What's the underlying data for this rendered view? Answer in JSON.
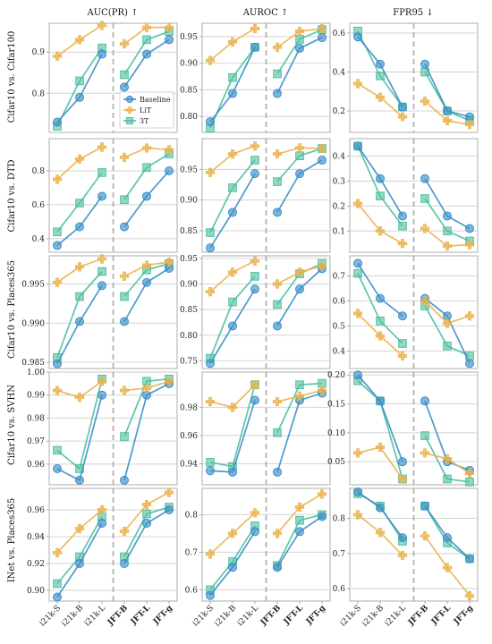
{
  "column_titles": [
    "AUC(PR) ↑",
    "AUROC ↑",
    "FPR95 ↓"
  ],
  "row_labels": [
    "Cifar10 vs. Cifar100",
    "Cifar10 vs. DTD",
    "Cifar10 vs. Places365",
    "Cifar10 vs. SVHN",
    "INet vs. Places365"
  ],
  "x_categories": [
    "i21k-S",
    "i21k-B",
    "i21k-L",
    "JFT-B",
    "JFT-L",
    "JFT-g"
  ],
  "x_bold": [
    false,
    false,
    false,
    true,
    true,
    true
  ],
  "legend": [
    "Baseline",
    "LiT",
    "3T"
  ],
  "colors": {
    "Baseline": "#3a8fc8",
    "LiT": "#ebb24c",
    "3T": "#4dbfa0"
  },
  "chart_data": {
    "type": "line",
    "layout": "grid 5 rows x 3 cols",
    "grid": true,
    "legend_position": "first panel, lower right",
    "separator": "dashed vertical line between i21k-L and JFT-B",
    "panels": [
      {
        "row": 0,
        "col": 0,
        "yticks": [
          "0.8",
          "0.9"
        ],
        "ylim": [
          0.705,
          0.97
        ],
        "series": [
          {
            "name": "Baseline",
            "values": [
              0.73,
              0.79,
              0.895,
              0.815,
              0.895,
              0.93
            ]
          },
          {
            "name": "LiT",
            "values": [
              0.89,
              0.93,
              0.965,
              0.92,
              0.96,
              0.96
            ]
          },
          {
            "name": "3T",
            "values": [
              0.72,
              0.83,
              0.91,
              0.845,
              0.93,
              0.95
            ]
          }
        ]
      },
      {
        "row": 0,
        "col": 1,
        "yticks": [
          "0.80",
          "0.85",
          "0.90",
          "0.95"
        ],
        "ylim": [
          0.77,
          0.975
        ],
        "series": [
          {
            "name": "Baseline",
            "values": [
              0.79,
              0.843,
              0.93,
              0.843,
              0.928,
              0.948
            ]
          },
          {
            "name": "LiT",
            "values": [
              0.905,
              0.94,
              0.965,
              0.93,
              0.96,
              0.965
            ]
          },
          {
            "name": "3T",
            "values": [
              0.778,
              0.873,
              0.93,
              0.88,
              0.945,
              0.963
            ]
          }
        ]
      },
      {
        "row": 0,
        "col": 2,
        "yticks": [
          "0.2",
          "0.4",
          "0.6"
        ],
        "ylim": [
          0.09,
          0.65
        ],
        "series": [
          {
            "name": "Baseline",
            "values": [
              0.58,
              0.44,
              0.22,
              0.44,
              0.2,
              0.17
            ]
          },
          {
            "name": "LiT",
            "values": [
              0.34,
              0.27,
              0.17,
              0.25,
              0.15,
              0.13
            ]
          },
          {
            "name": "3T",
            "values": [
              0.61,
              0.38,
              0.22,
              0.4,
              0.2,
              0.15
            ]
          }
        ]
      },
      {
        "row": 1,
        "col": 0,
        "yticks": [
          "0.4",
          "0.6",
          "0.8"
        ],
        "ylim": [
          0.32,
          0.99
        ],
        "series": [
          {
            "name": "Baseline",
            "values": [
              0.36,
              0.47,
              0.65,
              0.47,
              0.65,
              0.8
            ]
          },
          {
            "name": "LiT",
            "values": [
              0.75,
              0.87,
              0.94,
              0.88,
              0.935,
              0.925
            ]
          },
          {
            "name": "3T",
            "values": [
              0.44,
              0.61,
              0.79,
              0.63,
              0.82,
              0.9
            ]
          }
        ]
      },
      {
        "row": 1,
        "col": 1,
        "yticks": [
          "0.85",
          "0.90",
          "0.95"
        ],
        "ylim": [
          0.815,
          1.0
        ],
        "series": [
          {
            "name": "Baseline",
            "values": [
              0.822,
              0.88,
              0.943,
              0.88,
              0.943,
              0.965
            ]
          },
          {
            "name": "LiT",
            "values": [
              0.945,
              0.975,
              0.988,
              0.975,
              0.985,
              0.984
            ]
          },
          {
            "name": "3T",
            "values": [
              0.847,
              0.92,
              0.965,
              0.93,
              0.972,
              0.984
            ]
          }
        ]
      },
      {
        "row": 1,
        "col": 2,
        "yticks": [
          "0.1",
          "0.2",
          "0.3",
          "0.4"
        ],
        "ylim": [
          0.015,
          0.47
        ],
        "series": [
          {
            "name": "Baseline",
            "values": [
              0.44,
              0.31,
              0.16,
              0.31,
              0.16,
              0.11
            ]
          },
          {
            "name": "LiT",
            "values": [
              0.21,
              0.1,
              0.05,
              0.11,
              0.04,
              0.045
            ]
          },
          {
            "name": "3T",
            "values": [
              0.44,
              0.24,
              0.12,
              0.23,
              0.1,
              0.06
            ]
          }
        ]
      },
      {
        "row": 2,
        "col": 0,
        "yticks": [
          "0.985",
          "0.990",
          "0.995"
        ],
        "ylim": [
          0.9842,
          0.9986
        ],
        "series": [
          {
            "name": "Baseline",
            "values": [
              0.9848,
              0.9902,
              0.9948,
              0.9902,
              0.9952,
              0.997
            ]
          },
          {
            "name": "LiT",
            "values": [
              0.9952,
              0.9972,
              0.9982,
              0.996,
              0.9974,
              0.9978
            ]
          },
          {
            "name": "3T",
            "values": [
              0.9856,
              0.9934,
              0.9966,
              0.9934,
              0.9968,
              0.9976
            ]
          }
        ]
      },
      {
        "row": 2,
        "col": 1,
        "yticks": [
          "0.75",
          "0.80",
          "0.85",
          "0.90",
          "0.95"
        ],
        "ylim": [
          0.735,
          0.955
        ],
        "series": [
          {
            "name": "Baseline",
            "values": [
              0.745,
              0.818,
              0.89,
              0.818,
              0.89,
              0.93
            ]
          },
          {
            "name": "LiT",
            "values": [
              0.885,
              0.923,
              0.945,
              0.9,
              0.923,
              0.935
            ]
          },
          {
            "name": "3T",
            "values": [
              0.755,
              0.865,
              0.915,
              0.86,
              0.92,
              0.94
            ]
          }
        ]
      },
      {
        "row": 2,
        "col": 2,
        "yticks": [
          "0.4",
          "0.5",
          "0.6",
          "0.7"
        ],
        "ylim": [
          0.33,
          0.78
        ],
        "series": [
          {
            "name": "Baseline",
            "values": [
              0.75,
              0.61,
              0.54,
              0.61,
              0.54,
              0.35
            ]
          },
          {
            "name": "LiT",
            "values": [
              0.55,
              0.46,
              0.38,
              0.6,
              0.51,
              0.54
            ]
          },
          {
            "name": "3T",
            "values": [
              0.71,
              0.52,
              0.43,
              0.58,
              0.42,
              0.38
            ]
          }
        ]
      },
      {
        "row": 3,
        "col": 0,
        "yticks": [
          "0.96",
          "0.97",
          "0.98",
          "0.99",
          "1.00"
        ],
        "ylim": [
          0.951,
          1.0
        ],
        "series": [
          {
            "name": "Baseline",
            "values": [
              0.958,
              0.953,
              0.99,
              0.953,
              0.99,
              0.995
            ]
          },
          {
            "name": "LiT",
            "values": [
              0.992,
              0.989,
              0.996,
              0.992,
              0.993,
              0.996
            ]
          },
          {
            "name": "3T",
            "values": [
              0.966,
              0.958,
              0.997,
              0.972,
              0.996,
              0.997
            ]
          }
        ]
      },
      {
        "row": 3,
        "col": 1,
        "yticks": [
          "0.94",
          "0.96",
          "0.98"
        ],
        "ylim": [
          0.925,
          1.005
        ],
        "series": [
          {
            "name": "Baseline",
            "values": [
              0.935,
              0.934,
              0.985,
              0.934,
              0.985,
              0.99
            ]
          },
          {
            "name": "LiT",
            "values": [
              0.984,
              0.98,
              0.996,
              0.984,
              0.988,
              0.992
            ]
          },
          {
            "name": "3T",
            "values": [
              0.941,
              0.938,
              0.996,
              0.962,
              0.996,
              0.997
            ]
          }
        ]
      },
      {
        "row": 3,
        "col": 2,
        "yticks": [
          "0.05",
          "0.10",
          "0.15",
          "0.20"
        ],
        "ylim": [
          0.01,
          0.205
        ],
        "series": [
          {
            "name": "Baseline",
            "values": [
              0.2,
              0.155,
              0.05,
              0.155,
              0.05,
              0.035
            ]
          },
          {
            "name": "LiT",
            "values": [
              0.065,
              0.075,
              0.02,
              0.065,
              0.055,
              0.03
            ]
          },
          {
            "name": "3T",
            "values": [
              0.19,
              0.155,
              0.02,
              0.095,
              0.02,
              0.015
            ]
          }
        ]
      },
      {
        "row": 4,
        "col": 0,
        "yticks": [
          "0.90",
          "0.92",
          "0.94",
          "0.96"
        ],
        "ylim": [
          0.892,
          0.976
        ],
        "series": [
          {
            "name": "Baseline",
            "values": [
              0.895,
              0.92,
              0.95,
              0.92,
              0.95,
              0.96
            ]
          },
          {
            "name": "LiT",
            "values": [
              0.928,
              0.946,
              0.96,
              0.944,
              0.964,
              0.973
            ]
          },
          {
            "name": "3T",
            "values": [
              0.905,
              0.925,
              0.955,
              0.925,
              0.957,
              0.962
            ]
          }
        ]
      },
      {
        "row": 4,
        "col": 1,
        "yticks": [
          "0.6",
          "0.7",
          "0.8"
        ],
        "ylim": [
          0.57,
          0.87
        ],
        "series": [
          {
            "name": "Baseline",
            "values": [
              0.585,
              0.66,
              0.755,
              0.66,
              0.755,
              0.795
            ]
          },
          {
            "name": "LiT",
            "values": [
              0.695,
              0.75,
              0.805,
              0.75,
              0.82,
              0.855
            ]
          },
          {
            "name": "3T",
            "values": [
              0.6,
              0.675,
              0.77,
              0.665,
              0.785,
              0.8
            ]
          }
        ]
      },
      {
        "row": 4,
        "col": 2,
        "yticks": [
          "0.6",
          "0.7",
          "0.8"
        ],
        "ylim": [
          0.565,
          0.885
        ],
        "series": [
          {
            "name": "Baseline",
            "values": [
              0.875,
              0.83,
              0.745,
              0.835,
              0.745,
              0.685
            ]
          },
          {
            "name": "LiT",
            "values": [
              0.81,
              0.76,
              0.695,
              0.75,
              0.66,
              0.58
            ]
          },
          {
            "name": "3T",
            "values": [
              0.87,
              0.835,
              0.735,
              0.835,
              0.73,
              0.685
            ]
          }
        ]
      }
    ]
  }
}
